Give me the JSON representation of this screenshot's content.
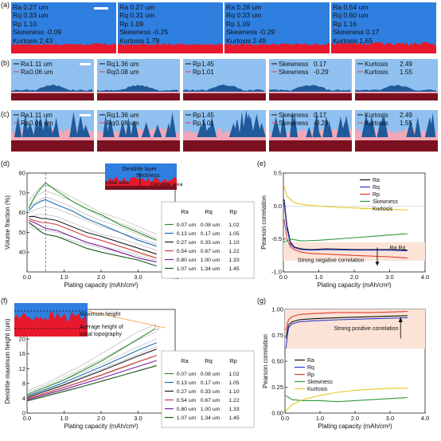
{
  "panels": {
    "a": "(a)",
    "b": "(b)",
    "c": "(c)",
    "d": "(d)",
    "e": "(e)",
    "f": "(f)",
    "g": "(g)"
  },
  "row_a": [
    {
      "lines": [
        "Ra 0.27 um",
        "Rq 0.33 um",
        "Rp 1.10",
        "Skewness -0.09",
        "Kurtosis 2.43"
      ]
    },
    {
      "lines": [
        "Ra 0.27 um",
        "Rq 0.31 um",
        "Rp 1.09",
        "Skewness -0.25",
        "Kurtosis 1.79"
      ]
    },
    {
      "lines": [
        "Ra 0.28 um",
        "Rq 0.33 um",
        "Rp 1.09",
        "Skewness -0.29",
        "Kurtosis 2.49"
      ]
    },
    {
      "lines": [
        "Ra 0.54 um",
        "Rq 0.60 um",
        "Rp 1.16",
        "Skewness 0.17",
        "Kurtosis 1.65"
      ]
    }
  ],
  "row_b": [
    {
      "name": "Ra",
      "v1": "1.11 um",
      "v2": "0.06 um"
    },
    {
      "name": "Rq",
      "v1": "1.36 um",
      "v2": "0.08 um"
    },
    {
      "name": "Rp",
      "v1": "1.45",
      "v2": "1.01"
    },
    {
      "name": "Skewness",
      "v1": "0.17",
      "v2": "-0.29"
    },
    {
      "name": "Kurtosis",
      "v1": "2.49",
      "v2": "1.55"
    }
  ],
  "row_c": [
    {
      "name": "Ra",
      "v1": "1.11 um",
      "v2": "0.06 um"
    },
    {
      "name": "Rq",
      "v1": "1.36 um",
      "v2": "0.08 um"
    },
    {
      "name": "Rp",
      "v1": "1.45",
      "v2": "1.01"
    },
    {
      "name": "Skewness",
      "v1": "0.17",
      "v2": "-0.29"
    },
    {
      "name": "Kurtosis",
      "v1": "2.49",
      "v2": "1.55"
    }
  ],
  "colors": {
    "blue": "#2f7fe0",
    "light_blue": "#8fc0ef",
    "red": "#e8192c",
    "dark_red": "#7a1020",
    "pink": "#f3a7b6",
    "tree_blue": "#1f5a9a"
  },
  "table": {
    "headers": [
      "Ra",
      "Rq",
      "Rp"
    ],
    "rows": [
      [
        "0.07 um",
        "0.08 um",
        "1.02"
      ],
      [
        "0.13 um",
        "0.17 um",
        "1.05"
      ],
      [
        "0.27 um",
        "0.33 um",
        "1.10"
      ],
      [
        "0.54 um",
        "0.67 um",
        "1.22"
      ],
      [
        "0.80 um",
        "1.00 um",
        "1.33"
      ],
      [
        "1.07 um",
        "1.34 um",
        "1.45"
      ]
    ],
    "colors": [
      "#2e8b2e",
      "#1d6fb8",
      "#222222",
      "#d23b3b",
      "#7a1f9c",
      "#1a5a1a"
    ]
  },
  "inset_d": {
    "layer": "Dendrite layer",
    "thickness": "thickness",
    "initial": "Initial area",
    "dendrite": "Dendrite area"
  },
  "inset_f": {
    "max": "Maximum height",
    "avg1": "Average height of",
    "avg2": "initial topography"
  },
  "annot_e": {
    "strong": "Strong negative correlation",
    "rarq": "Ra Rq"
  },
  "annot_g": {
    "strong": "Strong positive correlation"
  },
  "legend": [
    "Ra",
    "Rq",
    "Rp",
    "Skewness",
    "Kurtosis"
  ],
  "legend_colors": [
    "#111111",
    "#2a3cc8",
    "#e23b2e",
    "#2e9b3a",
    "#e8c82a"
  ],
  "chart_data": [
    {
      "type": "line",
      "panel": "d",
      "xlabel": "Plating capacity (mAh/cm²)",
      "ylabel": "Volume fraction (%)",
      "xlim": [
        0,
        4.0
      ],
      "ylim": [
        30,
        80
      ],
      "xticks": [
        "0.0",
        "1.0",
        "2.0",
        "3.0",
        "4.0"
      ],
      "yticks": [
        "40",
        "50",
        "60",
        "70",
        "80"
      ],
      "series": [
        {
          "x": [
            0.05,
            0.2,
            0.4,
            0.5,
            0.8,
            1.2,
            1.6,
            2.0,
            2.5,
            3.0,
            3.5
          ],
          "values": [
            62,
            68,
            73,
            75,
            71,
            66,
            62,
            59,
            54,
            50,
            46
          ]
        },
        {
          "x": [
            0.05,
            0.2,
            0.4,
            0.5,
            0.8,
            1.2,
            1.6,
            2.0,
            2.5,
            3.0,
            3.5
          ],
          "values": [
            61,
            64,
            66,
            66.5,
            64,
            61,
            57,
            54,
            50,
            46,
            43
          ]
        },
        {
          "x": [
            0.05,
            0.2,
            0.4,
            0.5,
            0.8,
            1.2,
            1.6,
            2.0,
            2.5,
            3.0,
            3.5
          ],
          "values": [
            58,
            58,
            57,
            57,
            56,
            53,
            50,
            48,
            45,
            42,
            39
          ]
        },
        {
          "x": [
            0.05,
            0.2,
            0.4,
            0.5,
            0.8,
            1.2,
            1.6,
            2.0,
            2.5,
            3.0,
            3.5
          ],
          "values": [
            57,
            56,
            55,
            55,
            54,
            51,
            48,
            46,
            43,
            40,
            37
          ]
        },
        {
          "x": [
            0.05,
            0.2,
            0.4,
            0.5,
            0.8,
            1.2,
            1.6,
            2.0,
            2.5,
            3.0,
            3.5
          ],
          "values": [
            56,
            55,
            53,
            52,
            51,
            48,
            45,
            43,
            40,
            37,
            35
          ]
        },
        {
          "x": [
            0.05,
            0.2,
            0.4,
            0.5,
            0.8,
            1.2,
            1.6,
            2.0,
            2.5,
            3.0,
            3.5
          ],
          "values": [
            55,
            53,
            50,
            49,
            48,
            45,
            42,
            40,
            38,
            36,
            33
          ]
        }
      ],
      "gray_series": [
        [
          66,
          72,
          74,
          72,
          68,
          64,
          60,
          57,
          53,
          49
        ],
        [
          64,
          69,
          71,
          69,
          66,
          62,
          58,
          55,
          51,
          47
        ],
        [
          63,
          66,
          68,
          66,
          63,
          59,
          56,
          53,
          49,
          46
        ],
        [
          60,
          62,
          63,
          62,
          59,
          56,
          53,
          50,
          47,
          44
        ],
        [
          58,
          59,
          59,
          58,
          55,
          52,
          49,
          47,
          44,
          41
        ],
        [
          54,
          52,
          51,
          50,
          48,
          45,
          43,
          41,
          39,
          37
        ],
        [
          53,
          51,
          49,
          48,
          46,
          44,
          42,
          40,
          38,
          36
        ]
      ],
      "gray_x": [
        0.05,
        0.3,
        0.5,
        0.8,
        1.2,
        1.6,
        2.0,
        2.5,
        3.0,
        3.5
      ],
      "dashed_x": 0.5
    },
    {
      "type": "line",
      "panel": "e",
      "xlabel": "Plating capacity (mAh/cm²)",
      "ylabel": "Pearson correlation",
      "xlim": [
        0,
        4.0
      ],
      "ylim": [
        -1.0,
        0.5
      ],
      "xticks": [
        "0.0",
        "1.0",
        "2.0",
        "3.0",
        "4.0"
      ],
      "yticks": [
        "-1.0",
        "-0.5",
        "0.0",
        "0.5"
      ],
      "series": [
        {
          "name": "Ra",
          "x": [
            0.02,
            0.1,
            0.2,
            0.3,
            0.5,
            0.8,
            1.2,
            2.0,
            3.0,
            3.5
          ],
          "values": [
            0.1,
            -0.3,
            -0.55,
            -0.62,
            -0.65,
            -0.66,
            -0.65,
            -0.66,
            -0.66,
            -0.67
          ]
        },
        {
          "name": "Rq",
          "x": [
            0.02,
            0.1,
            0.2,
            0.3,
            0.5,
            0.8,
            1.2,
            2.0,
            3.0,
            3.5
          ],
          "values": [
            0.05,
            -0.35,
            -0.58,
            -0.63,
            -0.66,
            -0.67,
            -0.66,
            -0.67,
            -0.67,
            -0.68
          ]
        },
        {
          "name": "Rp",
          "x": [
            0.02,
            0.1,
            0.2,
            0.3,
            0.5,
            0.8,
            1.2,
            2.0,
            3.0,
            3.5
          ],
          "values": [
            -0.2,
            -0.5,
            -0.62,
            -0.66,
            -0.7,
            -0.72,
            -0.73,
            -0.75,
            -0.77,
            -0.79
          ]
        },
        {
          "name": "Skewness",
          "x": [
            0.02,
            0.2,
            0.5,
            1.0,
            1.5,
            2.0,
            2.5,
            3.0,
            3.5
          ],
          "values": [
            -0.55,
            -0.5,
            -0.53,
            -0.52,
            -0.5,
            -0.48,
            -0.46,
            -0.44,
            -0.42
          ]
        },
        {
          "name": "Kurtosis",
          "x": [
            0.02,
            0.1,
            0.3,
            0.6,
            1.0,
            1.5,
            2.0,
            2.5,
            3.0,
            3.5
          ],
          "values": [
            0.3,
            0.15,
            0.05,
            0.02,
            0.0,
            -0.02,
            -0.03,
            -0.04,
            -0.05,
            -0.06
          ]
        }
      ]
    },
    {
      "type": "line",
      "panel": "f",
      "xlabel": "Plating capacity (mAh/cm²)",
      "ylabel": "Dendrite maximum height (um)",
      "xlim": [
        0,
        4.0
      ],
      "ylim": [
        0,
        28
      ],
      "xticks": [
        "0.0",
        "1.0",
        "2.0",
        "3.0",
        "4.0"
      ],
      "yticks": [
        "0",
        "4",
        "8",
        "12",
        "16",
        "20",
        "24"
      ],
      "series": [
        {
          "x": [
            0,
            0.5,
            1.0,
            1.5,
            2.0,
            2.5,
            3.0,
            3.5
          ],
          "values": [
            5,
            7,
            9,
            11.5,
            14,
            17,
            20,
            23
          ]
        },
        {
          "x": [
            0,
            0.5,
            1.0,
            1.5,
            2.0,
            2.5,
            3.0,
            3.5
          ],
          "values": [
            4.6,
            6.4,
            8.3,
            10.4,
            12.5,
            14.7,
            17,
            19
          ]
        },
        {
          "x": [
            0,
            0.5,
            1.0,
            1.5,
            2.0,
            2.5,
            3.0,
            3.5
          ],
          "values": [
            4.2,
            5.9,
            7.6,
            9.5,
            11.4,
            13.4,
            15.4,
            17.3
          ]
        },
        {
          "x": [
            0,
            0.5,
            1.0,
            1.5,
            2.0,
            2.5,
            3.0,
            3.5
          ],
          "values": [
            3.9,
            5.4,
            7.0,
            8.6,
            10.3,
            12.1,
            13.9,
            15.6
          ]
        },
        {
          "x": [
            0,
            0.5,
            1.0,
            1.5,
            2.0,
            2.5,
            3.0,
            3.5
          ],
          "values": [
            3.6,
            5.0,
            6.4,
            7.9,
            9.4,
            11,
            12.6,
            14.2
          ]
        },
        {
          "x": [
            0,
            0.5,
            1.0,
            1.5,
            2.0,
            2.5,
            3.0,
            3.5
          ],
          "values": [
            3.3,
            4.6,
            5.9,
            7.2,
            8.6,
            10,
            11.4,
            12.8
          ]
        }
      ],
      "gray_series": [
        [
          6,
          8,
          10.5,
          13,
          16,
          19,
          22,
          24
        ],
        [
          5.5,
          7.5,
          9.7,
          12,
          14.5,
          17.2,
          19.8,
          22
        ],
        [
          5,
          6.9,
          8.9,
          11,
          13.2,
          15.6,
          17.9,
          20
        ],
        [
          4.4,
          6.1,
          7.9,
          9.8,
          11.8,
          13.8,
          15.9,
          18
        ],
        [
          3.8,
          5.2,
          6.8,
          8.4,
          10.1,
          11.9,
          13.7,
          15.5
        ],
        [
          3.2,
          4.4,
          5.7,
          7.1,
          8.5,
          10,
          11.5,
          13
        ]
      ],
      "gray_x": [
        0,
        0.5,
        1.0,
        1.5,
        2.0,
        2.5,
        3.0,
        3.5
      ]
    },
    {
      "type": "line",
      "panel": "g",
      "xlabel": "Plating capacity (mAh/cm²)",
      "ylabel": "Pearson correlation",
      "xlim": [
        0,
        4.0
      ],
      "ylim": [
        0,
        1.0
      ],
      "xticks": [
        "0.0",
        "1.0",
        "2.0",
        "3.0",
        "4.0"
      ],
      "yticks": [
        "0.00",
        "0.25",
        "0.50",
        "0.75",
        "1.00"
      ],
      "series": [
        {
          "name": "Ra",
          "x": [
            0.02,
            0.1,
            0.2,
            0.4,
            0.8,
            1.5,
            2.5,
            3.5
          ],
          "values": [
            0.72,
            0.85,
            0.88,
            0.9,
            0.91,
            0.92,
            0.93,
            0.94
          ]
        },
        {
          "name": "Rq",
          "x": [
            0.02,
            0.1,
            0.2,
            0.4,
            0.8,
            1.5,
            2.5,
            3.5
          ],
          "values": [
            0.62,
            0.82,
            0.86,
            0.88,
            0.89,
            0.9,
            0.91,
            0.92
          ]
        },
        {
          "name": "Rp",
          "x": [
            0.02,
            0.1,
            0.2,
            0.4,
            0.8,
            1.5,
            2.5,
            3.5
          ],
          "values": [
            0.8,
            0.9,
            0.93,
            0.95,
            0.96,
            0.97,
            0.97,
            0.98
          ]
        },
        {
          "name": "Skewness",
          "x": [
            0.02,
            0.2,
            0.5,
            1.0,
            1.5,
            2.0,
            2.5,
            3.0,
            3.5
          ],
          "values": [
            0.17,
            0.13,
            0.12,
            0.12,
            0.11,
            0.12,
            0.13,
            0.14,
            0.15
          ]
        },
        {
          "name": "Kurtosis",
          "x": [
            0.02,
            0.2,
            0.5,
            1.0,
            1.5,
            2.0,
            2.5,
            3.0,
            3.5
          ],
          "values": [
            0.02,
            0.08,
            0.13,
            0.17,
            0.2,
            0.22,
            0.23,
            0.24,
            0.24
          ]
        }
      ]
    }
  ]
}
